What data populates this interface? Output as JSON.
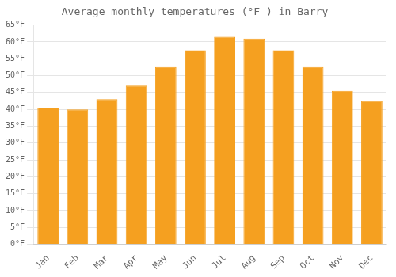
{
  "chart_data": {
    "type": "bar",
    "title": "Average monthly temperatures (°F ) in Barry",
    "categories": [
      "Jan",
      "Feb",
      "Mar",
      "Apr",
      "May",
      "Jun",
      "Jul",
      "Aug",
      "Sep",
      "Oct",
      "Nov",
      "Dec"
    ],
    "values": [
      40.5,
      40.0,
      43.0,
      47.0,
      52.5,
      57.5,
      61.5,
      61.0,
      57.5,
      52.5,
      45.5,
      42.5
    ],
    "color": "#F5A020",
    "ylim": [
      0,
      65
    ],
    "yticks": [
      {
        "value": 0,
        "label": "0°F"
      },
      {
        "value": 5,
        "label": "5°F"
      },
      {
        "value": 10,
        "label": "10°F"
      },
      {
        "value": 15,
        "label": "15°F"
      },
      {
        "value": 20,
        "label": "20°F"
      },
      {
        "value": 25,
        "label": "25°F"
      },
      {
        "value": 30,
        "label": "30°F"
      },
      {
        "value": 35,
        "label": "35°F"
      },
      {
        "value": 40,
        "label": "40°F"
      },
      {
        "value": 45,
        "label": "45°F"
      },
      {
        "value": 50,
        "label": "50°F"
      },
      {
        "value": 55,
        "label": "55°F"
      },
      {
        "value": 60,
        "label": "60°F"
      },
      {
        "value": 65,
        "label": "65°F"
      }
    ],
    "grid": true
  }
}
